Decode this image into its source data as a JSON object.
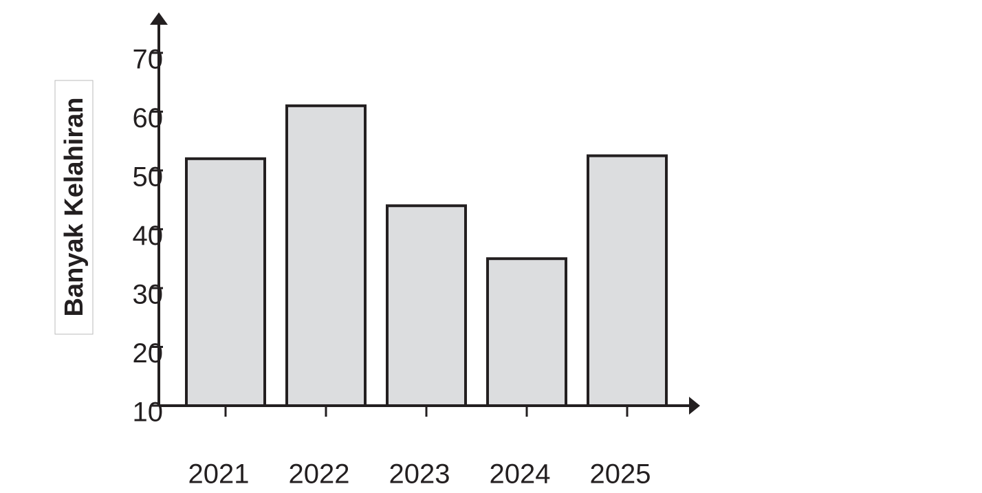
{
  "chart_data": {
    "type": "bar",
    "y_label": "Banyak Kelahiran",
    "categories": [
      "2021",
      "2022",
      "2023",
      "2024",
      "2025"
    ],
    "values": [
      52,
      61,
      44,
      35,
      52.5
    ],
    "color": "#dcdddf",
    "edge_color": "#231f20",
    "ylim": [
      10,
      77
    ],
    "yticks": [
      10,
      20,
      30,
      40,
      50,
      60,
      70
    ]
  }
}
